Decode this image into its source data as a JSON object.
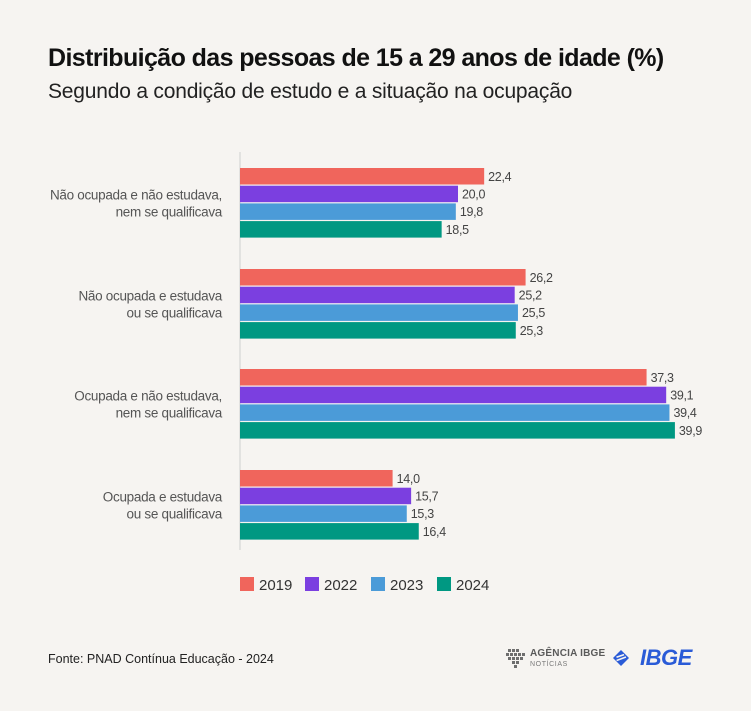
{
  "header": {
    "title": "Distribuição das pessoas de 15 a 29 anos de idade (%)",
    "subtitle": "Segundo a condição de estudo e a situação na ocupação"
  },
  "chart_data": {
    "type": "bar",
    "orientation": "horizontal",
    "title": "Distribuição das pessoas de 15 a 29 anos de idade (%)",
    "subtitle": "Segundo a condição de estudo e a situação na ocupação",
    "xlabel": "",
    "ylabel": "",
    "xlim": [
      0,
      40
    ],
    "grid": false,
    "legend_position": "bottom",
    "categories": [
      [
        "Não ocupada e não estudava,",
        "nem se qualificava"
      ],
      [
        "Não ocupada e estudava",
        "ou se qualificava"
      ],
      [
        "Ocupada e não estudava,",
        "nem se qualificava"
      ],
      [
        "Ocupada e estudava",
        "ou se qualificava"
      ]
    ],
    "series": [
      {
        "name": "2019",
        "color": "#f0655c",
        "values": [
          22.4,
          26.2,
          37.3,
          14.0
        ],
        "labels": [
          "22,4",
          "26,2",
          "37,3",
          "14,0"
        ]
      },
      {
        "name": "2022",
        "color": "#7b3fe0",
        "values": [
          20.0,
          25.2,
          39.1,
          15.7
        ],
        "labels": [
          "20,0",
          "25,2",
          "39,1",
          "15,7"
        ]
      },
      {
        "name": "2023",
        "color": "#4b9bd8",
        "values": [
          19.8,
          25.5,
          39.4,
          15.3
        ],
        "labels": [
          "19,8",
          "25,5",
          "39,4",
          "15,3"
        ]
      },
      {
        "name": "2024",
        "color": "#009882",
        "values": [
          18.5,
          25.3,
          39.9,
          16.4
        ],
        "labels": [
          "18,5",
          "25,3",
          "39,9",
          "16,4"
        ]
      }
    ]
  },
  "footer": {
    "source": "Fonte: PNAD Contínua Educação - 2024",
    "agencia_label": "AGÊNCIA IBGE",
    "agencia_sub": "NOTÍCIAS",
    "ibge_label": "IBGE"
  }
}
